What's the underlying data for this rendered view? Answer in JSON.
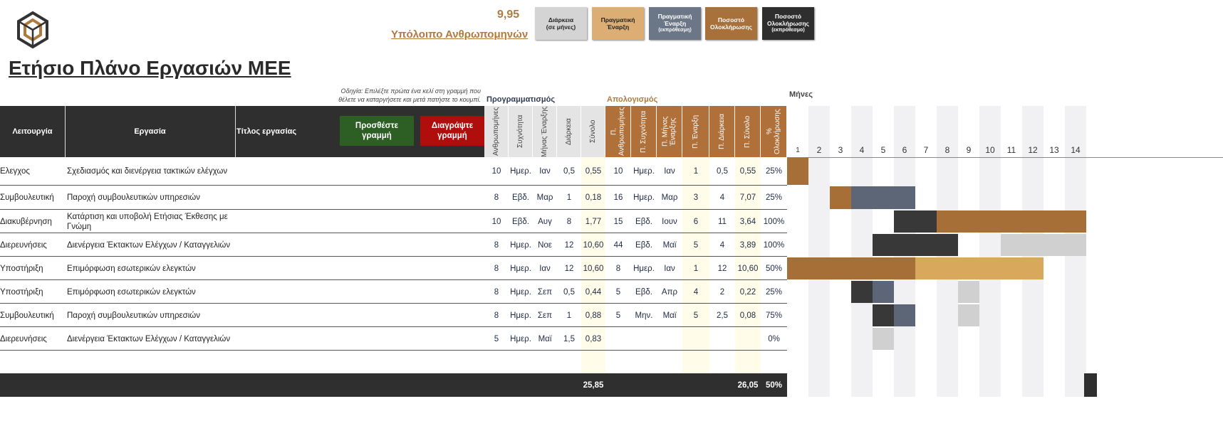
{
  "header": {
    "remaining_value": "9,95",
    "remaining_label": "Υπόλοιπο Ανθρωπομηνών",
    "legend": [
      {
        "lines": [
          "Διάρκεια",
          "(σε μήνες)"
        ],
        "color": "#d4d4d4",
        "text_color": "#222222"
      },
      {
        "lines": [
          "Πραγματική",
          "Έναρξη"
        ],
        "color": "#dcae74",
        "text_color": "#222222"
      },
      {
        "lines": [
          "Πραγματική",
          "Έναρξη",
          "(εκπρόθεσμη)"
        ],
        "color": "#6b7687",
        "text_color": "#ffffff"
      },
      {
        "lines": [
          "Ποσοστό",
          "Ολοκλήρωσης"
        ],
        "color": "#a8703a",
        "text_color": "#ffffff"
      },
      {
        "lines": [
          "Ποσοστό",
          "Ολοκλήρωσης",
          "(εκπρόθεσμο)"
        ],
        "color": "#2e2e2e",
        "text_color": "#ffffff"
      }
    ]
  },
  "title": "Ετήσιο Πλάνο Εργασιών ΜΕΕ",
  "note": [
    "Οδηγία: Επιλέξτε πρώτα ένα κελί στη γραμμή που",
    "θέλετε να καταργήσετε και μετά πατήστε το κουμπί."
  ],
  "sections": {
    "planning": "Προγραμματισμός",
    "actual": "Απολογισμός",
    "months": "Μήνες"
  },
  "buttons": {
    "add": [
      "Προσθέστε",
      "γραμμή"
    ],
    "delete": [
      "Διαγράψτε",
      "γραμμή"
    ]
  },
  "left_headers": [
    "Λειτουργία",
    "Εργασία",
    "Τίτλος εργασίας"
  ],
  "columns": [
    "Ανθρωπομήνες",
    "Συχνότητα",
    "Μήνας Έναρξης",
    "Διάρκεια",
    "Σύνολο",
    "Π. Ανθρωπομήνες",
    "Π. Συχνότητα",
    "Π. Μήνας Έναρξης",
    "Π. Έναρξη",
    "Π. Διάρκεια",
    "Π. Σύνολο",
    "% Ολοκλήρωσης"
  ],
  "months": [
    "1",
    "2",
    "3",
    "4",
    "5",
    "6",
    "7",
    "8",
    "9",
    "10",
    "11",
    "12",
    "13",
    "14"
  ],
  "rows": [
    {
      "function": "Ελεγχος",
      "task": "Σχεδιασμός και διενέργεια τακτικών ελέγχων",
      "cells": [
        "10",
        "Ημερ.",
        "Ιαν",
        "0,5",
        "0,55",
        "10",
        "Ημερ.",
        "Ιαν",
        "1",
        "0,5",
        "0,55",
        "25%"
      ],
      "gantt": [
        "#a66f38",
        null,
        null,
        null,
        null,
        null,
        null,
        null,
        null,
        null,
        null,
        null,
        null,
        null
      ]
    },
    {
      "function": "Συμβουλευτική",
      "task": "Παροχή συμβουλευτικών υπηρεσιών",
      "cells": [
        "8",
        "Εβδ.",
        "Μαρ",
        "1",
        "0,18",
        "16",
        "Ημερ.",
        "Μαρ",
        "3",
        "4",
        "7,07",
        "25%"
      ],
      "gantt": [
        null,
        null,
        "#a66f38",
        "#5c6677",
        "#5c6677",
        "#5c6677",
        null,
        null,
        null,
        null,
        null,
        null,
        null,
        null
      ]
    },
    {
      "function": "Διακυβέρνηση",
      "task": "Κατάρτιση και υποβολή Ετήσιας Έκθεσης με Γνώμη",
      "cells": [
        "10",
        "Εβδ.",
        "Αυγ",
        "8",
        "1,77",
        "15",
        "Εβδ.",
        "Ιουν",
        "6",
        "11",
        "3,64",
        "100%"
      ],
      "gantt": [
        null,
        null,
        null,
        null,
        null,
        "#383838",
        "#383838",
        "#a66f38",
        "#a66f38",
        "#a66f38",
        "#a66f38",
        "#a66f38",
        "#a66f38",
        "#a66f38"
      ]
    },
    {
      "function": "Διερευνήσεις",
      "task": "Διενέργεια Έκτακτων Ελέγχων / Καταγγελιών",
      "cells": [
        "8",
        "Ημερ.",
        "Νοε",
        "12",
        "10,60",
        "44",
        "Εβδ.",
        "Μαϊ",
        "5",
        "4",
        "3,89",
        "100%"
      ],
      "gantt": [
        null,
        null,
        null,
        null,
        "#383838",
        "#383838",
        "#383838",
        "#383838",
        null,
        null,
        "#d0d0d0",
        "#d0d0d0",
        "#d0d0d0",
        "#d0d0d0"
      ]
    },
    {
      "function": "Υποστήριξη",
      "task": "Επιμόρφωση εσωτερικών ελεγκτών",
      "cells": [
        "8",
        "Ημερ.",
        "Ιαν",
        "12",
        "10,60",
        "8",
        "Ημερ.",
        "Ιαν",
        "1",
        "12",
        "10,60",
        "50%"
      ],
      "gantt": [
        "#a66f38",
        "#a66f38",
        "#a66f38",
        "#a66f38",
        "#a66f38",
        "#a66f38",
        "#d8a85c",
        "#d8a85c",
        "#d8a85c",
        "#d8a85c",
        "#d8a85c",
        "#d8a85c",
        null,
        null
      ]
    },
    {
      "function": "Υποστήριξη",
      "task": "Επιμόρφωση εσωτερικών ελεγκτών",
      "cells": [
        "8",
        "Ημερ.",
        "Σεπ",
        "0,5",
        "0,44",
        "5",
        "Εβδ.",
        "Απρ",
        "4",
        "2",
        "0,22",
        "25%"
      ],
      "gantt": [
        null,
        null,
        null,
        "#383838",
        "#5c6677",
        null,
        null,
        null,
        "#d0d0d0",
        null,
        null,
        null,
        null,
        null
      ]
    },
    {
      "function": "Συμβουλευτική",
      "task": "Παροχή συμβουλευτικών υπηρεσιών",
      "cells": [
        "8",
        "Ημερ.",
        "Σεπ",
        "1",
        "0,88",
        "5",
        "Μην.",
        "Μαϊ",
        "5",
        "2,5",
        "0,08",
        "75%"
      ],
      "gantt": [
        null,
        null,
        null,
        null,
        "#383838",
        "#5c6677",
        null,
        null,
        "#d0d0d0",
        null,
        null,
        null,
        null,
        null
      ]
    },
    {
      "function": "Διερευνήσεις",
      "task": "Διενέργεια Έκτακτων Ελέγχων / Καταγγελιών",
      "cells": [
        "5",
        "Ημερ.",
        "Μαϊ",
        "1,5",
        "0,83",
        null,
        null,
        null,
        null,
        null,
        null,
        "0%"
      ],
      "gantt": [
        null,
        null,
        null,
        null,
        "#d0d0d0",
        null,
        null,
        null,
        null,
        null,
        null,
        null,
        null,
        null
      ]
    }
  ],
  "totals": {
    "planned": "25,85",
    "actual": "26,05",
    "completion": "50%"
  }
}
